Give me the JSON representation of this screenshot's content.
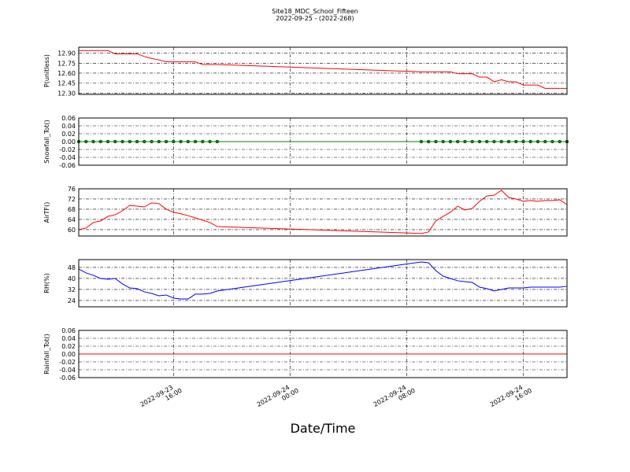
{
  "title": "Site18_MDC_School_Fifteen",
  "subtitle": "2022-09-25 - (2022-268)",
  "xlabel": "Date/Time",
  "chart_data": [
    {
      "type": "line",
      "ylabel": "P(unitless)",
      "grid": true,
      "x": [
        "2022-09-23 09:30",
        "2022-09-23 10:00",
        "2022-09-23 10:30",
        "2022-09-23 11:00",
        "2022-09-23 11:30",
        "2022-09-23 12:00",
        "2022-09-23 12:30",
        "2022-09-23 13:00",
        "2022-09-23 13:30",
        "2022-09-23 14:00",
        "2022-09-23 14:30",
        "2022-09-23 15:00",
        "2022-09-23 15:30",
        "2022-09-23 16:00",
        "2022-09-23 16:30",
        "2022-09-23 17:00",
        "2022-09-23 17:30",
        "2022-09-23 18:00",
        "2022-09-23 18:30",
        "2022-09-23 19:00",
        "2022-09-24 09:00",
        "2022-09-24 09:30",
        "2022-09-24 10:00",
        "2022-09-24 10:30",
        "2022-09-24 11:00",
        "2022-09-24 11:30",
        "2022-09-24 12:00",
        "2022-09-24 12:30",
        "2022-09-24 13:00",
        "2022-09-24 13:30",
        "2022-09-24 14:00",
        "2022-09-24 14:30",
        "2022-09-24 15:00",
        "2022-09-24 15:30",
        "2022-09-24 16:00",
        "2022-09-24 16:30",
        "2022-09-24 17:00",
        "2022-09-24 17:30",
        "2022-09-24 18:00",
        "2022-09-24 18:30",
        "2022-09-24 19:00"
      ],
      "series": [
        {
          "color": "#ff0000",
          "values": [
            12.94,
            12.94,
            12.94,
            12.94,
            12.94,
            12.89,
            12.89,
            12.89,
            12.89,
            12.85,
            12.82,
            12.8,
            12.77,
            12.77,
            12.77,
            12.77,
            12.77,
            12.73,
            12.73,
            12.73,
            12.62,
            12.62,
            12.62,
            12.62,
            12.62,
            12.59,
            12.59,
            12.59,
            12.54,
            12.54,
            12.47,
            12.5,
            12.47,
            12.47,
            12.42,
            12.42,
            12.42,
            12.37,
            12.37,
            12.37,
            12.37
          ]
        }
      ],
      "xlim": [
        "2022-09-23 09:30",
        "2022-09-24 19:00"
      ],
      "xticks": [
        "2022-09-23 16:00",
        "2022-09-24 00:00",
        "2022-09-24 08:00",
        "2022-09-24 16:00"
      ],
      "ylim": [
        12.28,
        12.99
      ],
      "yticks": [
        {
          "value": 12.3,
          "label": "12.30"
        },
        12.45,
        {
          "value": 12.6,
          "label": "12.60"
        },
        12.75,
        {
          "value": 12.9,
          "label": "12.90"
        }
      ]
    },
    {
      "type": "line",
      "ylabel": "Snowfall_Tot()",
      "grid": true,
      "x": [
        "2022-09-23 09:30",
        "2022-09-23 10:00",
        "2022-09-23 10:30",
        "2022-09-23 11:00",
        "2022-09-23 11:30",
        "2022-09-23 12:00",
        "2022-09-23 12:30",
        "2022-09-23 13:00",
        "2022-09-23 13:30",
        "2022-09-23 14:00",
        "2022-09-23 14:30",
        "2022-09-23 15:00",
        "2022-09-23 15:30",
        "2022-09-23 16:00",
        "2022-09-23 16:30",
        "2022-09-23 17:00",
        "2022-09-23 17:30",
        "2022-09-23 18:00",
        "2022-09-23 18:30",
        "2022-09-23 19:00",
        "2022-09-24 09:00",
        "2022-09-24 09:30",
        "2022-09-24 10:00",
        "2022-09-24 10:30",
        "2022-09-24 11:00",
        "2022-09-24 11:30",
        "2022-09-24 12:00",
        "2022-09-24 12:30",
        "2022-09-24 13:00",
        "2022-09-24 13:30",
        "2022-09-24 14:00",
        "2022-09-24 14:30",
        "2022-09-24 15:00",
        "2022-09-24 15:30",
        "2022-09-24 16:00",
        "2022-09-24 16:30",
        "2022-09-24 17:00",
        "2022-09-24 17:30",
        "2022-09-24 18:00",
        "2022-09-24 18:30",
        "2022-09-24 19:00"
      ],
      "series": [
        {
          "color": "#008000",
          "marker": true,
          "values": [
            0,
            0,
            0,
            0,
            0,
            0,
            0,
            0,
            0,
            0,
            0,
            0,
            0,
            0,
            0,
            0,
            0,
            0,
            0,
            0,
            0,
            0,
            0,
            0,
            0,
            0,
            0,
            0,
            0,
            0,
            0,
            0,
            0,
            0,
            0,
            0,
            0,
            0,
            0,
            0,
            0
          ]
        }
      ],
      "xlim": [
        "2022-09-23 09:30",
        "2022-09-24 19:00"
      ],
      "xticks": [
        "2022-09-23 16:00",
        "2022-09-24 00:00",
        "2022-09-24 08:00",
        "2022-09-24 16:00"
      ],
      "ylim": [
        -0.06,
        0.06
      ],
      "yticks": [
        -0.06,
        -0.04,
        -0.02,
        {
          "value": 0,
          "label": "0.00"
        },
        0.02,
        0.04,
        0.06
      ]
    },
    {
      "type": "line",
      "ylabel": "AirTF()",
      "grid": true,
      "x": [
        "2022-09-23 09:30",
        "2022-09-23 10:00",
        "2022-09-23 10:30",
        "2022-09-23 11:00",
        "2022-09-23 11:30",
        "2022-09-23 12:00",
        "2022-09-23 12:30",
        "2022-09-23 13:00",
        "2022-09-23 13:30",
        "2022-09-23 14:00",
        "2022-09-23 14:30",
        "2022-09-23 15:00",
        "2022-09-23 15:30",
        "2022-09-23 16:00",
        "2022-09-23 16:30",
        "2022-09-23 17:00",
        "2022-09-23 17:30",
        "2022-09-23 18:00",
        "2022-09-23 18:30",
        "2022-09-23 19:00",
        "2022-09-24 09:00",
        "2022-09-24 09:30",
        "2022-09-24 10:00",
        "2022-09-24 10:30",
        "2022-09-24 11:00",
        "2022-09-24 11:30",
        "2022-09-24 12:00",
        "2022-09-24 12:30",
        "2022-09-24 13:00",
        "2022-09-24 13:30",
        "2022-09-24 14:00",
        "2022-09-24 14:30",
        "2022-09-24 15:00",
        "2022-09-24 15:30",
        "2022-09-24 16:00",
        "2022-09-24 16:30",
        "2022-09-24 17:00",
        "2022-09-24 17:30",
        "2022-09-24 18:00",
        "2022-09-24 18:30",
        "2022-09-24 19:00"
      ],
      "series": [
        {
          "color": "#ff0000",
          "values": [
            60,
            60.6,
            62.8,
            63.4,
            65.2,
            65.8,
            67.4,
            69.5,
            69.2,
            68.9,
            70.5,
            70.2,
            68,
            66.8,
            66.2,
            65.5,
            64.6,
            63.7,
            62.8,
            61.2,
            58.5,
            59.1,
            63.4,
            65.2,
            66.8,
            69.2,
            67.7,
            68.3,
            71.1,
            73.2,
            73.5,
            75.4,
            72.6,
            72,
            71.1,
            71.4,
            71.1,
            71.4,
            71.4,
            71.7,
            69.8
          ]
        }
      ],
      "xlim": [
        "2022-09-23 09:30",
        "2022-09-24 19:00"
      ],
      "xticks": [
        "2022-09-23 16:00",
        "2022-09-24 00:00",
        "2022-09-24 08:00",
        "2022-09-24 16:00"
      ],
      "ylim": [
        57.5,
        76
      ],
      "yticks": [
        60,
        64,
        68,
        72,
        76
      ]
    },
    {
      "type": "line",
      "ylabel": "RH(%)",
      "grid": true,
      "x": [
        "2022-09-23 09:30",
        "2022-09-23 10:00",
        "2022-09-23 10:30",
        "2022-09-23 11:00",
        "2022-09-23 11:30",
        "2022-09-23 12:00",
        "2022-09-23 12:30",
        "2022-09-23 13:00",
        "2022-09-23 13:30",
        "2022-09-23 14:00",
        "2022-09-23 14:30",
        "2022-09-23 15:00",
        "2022-09-23 15:30",
        "2022-09-23 16:00",
        "2022-09-23 16:30",
        "2022-09-23 17:00",
        "2022-09-23 17:30",
        "2022-09-23 18:00",
        "2022-09-23 18:30",
        "2022-09-23 19:00",
        "2022-09-24 09:00",
        "2022-09-24 09:30",
        "2022-09-24 10:00",
        "2022-09-24 10:30",
        "2022-09-24 11:00",
        "2022-09-24 11:30",
        "2022-09-24 12:00",
        "2022-09-24 12:30",
        "2022-09-24 13:00",
        "2022-09-24 13:30",
        "2022-09-24 14:00",
        "2022-09-24 14:30",
        "2022-09-24 15:00",
        "2022-09-24 15:30",
        "2022-09-24 16:00",
        "2022-09-24 16:30",
        "2022-09-24 17:00",
        "2022-09-24 17:30",
        "2022-09-24 18:00",
        "2022-09-24 18:30",
        "2022-09-24 19:00"
      ],
      "series": [
        {
          "color": "#0000ff",
          "values": [
            46.9,
            44,
            42.3,
            40,
            39.4,
            40,
            36,
            33.1,
            32.6,
            30.3,
            29.1,
            27.4,
            28,
            25.7,
            25.1,
            25.1,
            28.6,
            28.6,
            29.1,
            30.9,
            52,
            51.4,
            45.7,
            41.7,
            40,
            38.3,
            37.7,
            37.1,
            33.7,
            32.6,
            30.9,
            32,
            33.1,
            33.1,
            33.1,
            33.7,
            33.7,
            33.7,
            33.7,
            33.7,
            34.3
          ]
        }
      ],
      "xlim": [
        "2022-09-23 09:30",
        "2022-09-24 19:00"
      ],
      "xticks": [
        "2022-09-23 16:00",
        "2022-09-24 00:00",
        "2022-09-24 08:00",
        "2022-09-24 16:00"
      ],
      "ylim": [
        19.4,
        53.7
      ],
      "yticks": [
        24,
        32,
        40,
        48
      ]
    },
    {
      "type": "line",
      "ylabel": "Rainfall_Tot()",
      "grid": true,
      "x": [
        "2022-09-23 09:30",
        "2022-09-23 10:00",
        "2022-09-23 10:30",
        "2022-09-23 11:00",
        "2022-09-23 11:30",
        "2022-09-23 12:00",
        "2022-09-23 12:30",
        "2022-09-23 13:00",
        "2022-09-23 13:30",
        "2022-09-23 14:00",
        "2022-09-23 14:30",
        "2022-09-23 15:00",
        "2022-09-23 15:30",
        "2022-09-23 16:00",
        "2022-09-23 16:30",
        "2022-09-23 17:00",
        "2022-09-23 17:30",
        "2022-09-23 18:00",
        "2022-09-23 18:30",
        "2022-09-23 19:00",
        "2022-09-24 09:00",
        "2022-09-24 09:30",
        "2022-09-24 10:00",
        "2022-09-24 10:30",
        "2022-09-24 11:00",
        "2022-09-24 11:30",
        "2022-09-24 12:00",
        "2022-09-24 12:30",
        "2022-09-24 13:00",
        "2022-09-24 13:30",
        "2022-09-24 14:00",
        "2022-09-24 14:30",
        "2022-09-24 15:00",
        "2022-09-24 15:30",
        "2022-09-24 16:00",
        "2022-09-24 16:30",
        "2022-09-24 17:00",
        "2022-09-24 17:30",
        "2022-09-24 18:00",
        "2022-09-24 18:30",
        "2022-09-24 19:00"
      ],
      "series": [
        {
          "color": "#ff0000",
          "values": [
            0,
            0,
            0,
            0,
            0,
            0,
            0,
            0,
            0,
            0,
            0,
            0,
            0,
            0,
            0,
            0,
            0,
            0,
            0,
            0,
            0,
            0,
            0,
            0,
            0,
            0,
            0,
            0,
            0,
            0,
            0,
            0,
            0,
            0,
            0,
            0,
            0,
            0,
            0,
            0,
            0
          ]
        }
      ],
      "xlim": [
        "2022-09-23 09:30",
        "2022-09-24 19:00"
      ],
      "xticks": [
        "2022-09-23 16:00",
        "2022-09-24 00:00",
        "2022-09-24 08:00",
        "2022-09-24 16:00"
      ],
      "ylim": [
        -0.06,
        0.06
      ],
      "yticks": [
        -0.06,
        -0.04,
        -0.02,
        {
          "value": 0,
          "label": "0.00"
        },
        0.02,
        0.04,
        0.06
      ]
    }
  ]
}
